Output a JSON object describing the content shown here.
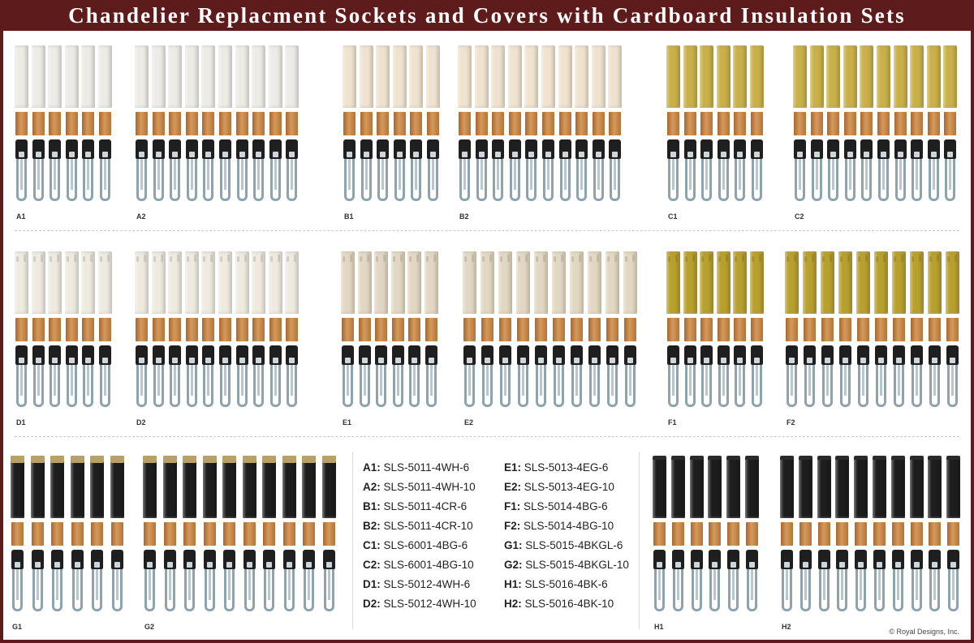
{
  "title": "Chandelier Replacment Sockets and Covers with Cardboard Insulation Sets",
  "colors": {
    "header_bg": "#5e1b1b",
    "white_cover": "#ecebe6",
    "cream_cover": "#efe3cf",
    "beige_drip_cover": "#e2d7c2",
    "gold_cover": "#c9b049",
    "gold_drip_cover": "#b8a02e",
    "black_cover": "#1d1d1d",
    "insulation": "#c6874a"
  },
  "sets": [
    {
      "label": "A1",
      "count": 6,
      "cover_color": "#ecebe6",
      "style": "plain"
    },
    {
      "label": "A2",
      "count": 10,
      "cover_color": "#ecebe6",
      "style": "plain"
    },
    {
      "label": "B1",
      "count": 6,
      "cover_color": "#efe3cf",
      "style": "plain"
    },
    {
      "label": "B2",
      "count": 10,
      "cover_color": "#efe3cf",
      "style": "plain"
    },
    {
      "label": "C1",
      "count": 6,
      "cover_color": "#c9b049",
      "style": "plain"
    },
    {
      "label": "C2",
      "count": 10,
      "cover_color": "#c9b049",
      "style": "plain"
    },
    {
      "label": "D1",
      "count": 6,
      "cover_color": "#eeeae0",
      "style": "drip"
    },
    {
      "label": "D2",
      "count": 10,
      "cover_color": "#eeeae0",
      "style": "drip"
    },
    {
      "label": "E1",
      "count": 6,
      "cover_color": "#e2d7c2",
      "style": "drip"
    },
    {
      "label": "E2",
      "count": 10,
      "cover_color": "#e2d7c2",
      "style": "drip"
    },
    {
      "label": "F1",
      "count": 6,
      "cover_color": "#b8a02e",
      "style": "drip"
    },
    {
      "label": "F2",
      "count": 10,
      "cover_color": "#b8a02e",
      "style": "drip"
    },
    {
      "label": "G1",
      "count": 6,
      "cover_color": "#1d1d1d",
      "style": "gold-top"
    },
    {
      "label": "G2",
      "count": 10,
      "cover_color": "#1d1d1d",
      "style": "gold-top"
    },
    {
      "label": "H1",
      "count": 6,
      "cover_color": "#1d1d1d",
      "style": "black-top"
    },
    {
      "label": "H2",
      "count": 10,
      "cover_color": "#1d1d1d",
      "style": "black-top"
    }
  ],
  "codes_left": [
    {
      "key": "A1:",
      "value": "SLS-5011-4WH-6"
    },
    {
      "key": "A2:",
      "value": "SLS-5011-4WH-10"
    },
    {
      "key": "B1:",
      "value": "SLS-5011-4CR-6"
    },
    {
      "key": "B2:",
      "value": "SLS-5011-4CR-10"
    },
    {
      "key": "C1:",
      "value": "SLS-6001-4BG-6"
    },
    {
      "key": "C2:",
      "value": "SLS-6001-4BG-10"
    },
    {
      "key": "D1:",
      "value": "SLS-5012-4WH-6"
    },
    {
      "key": "D2:",
      "value": "SLS-5012-4WH-10"
    }
  ],
  "codes_right": [
    {
      "key": "E1:",
      "value": "SLS-5013-4EG-6"
    },
    {
      "key": "E2:",
      "value": "SLS-5013-4EG-10"
    },
    {
      "key": "F1:",
      "value": "SLS-5014-4BG-6"
    },
    {
      "key": "F2:",
      "value": "SLS-5014-4BG-10"
    },
    {
      "key": "G1:",
      "value": "SLS-5015-4BKGL-6"
    },
    {
      "key": "G2:",
      "value": "SLS-5015-4BKGL-10"
    },
    {
      "key": "H1:",
      "value": "SLS-5016-4BK-6"
    },
    {
      "key": "H2:",
      "value": "SLS-5016-4BK-10"
    }
  ],
  "copyright": "© Royal Designs, Inc."
}
